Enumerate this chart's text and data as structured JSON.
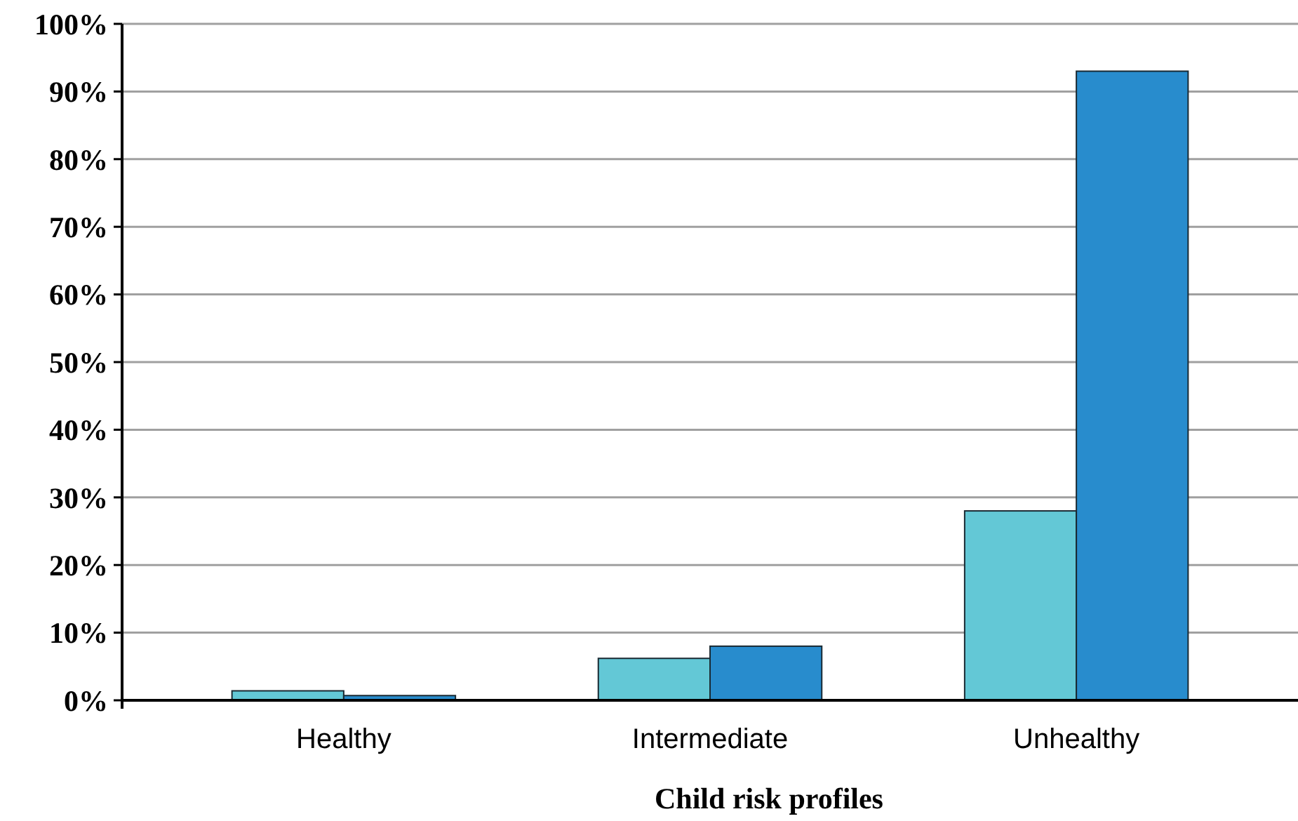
{
  "chart_data": {
    "type": "bar",
    "xlabel": "Child risk profiles",
    "categories": [
      "Healthy",
      "Intermediate",
      "Unhealthy"
    ],
    "series": [
      {
        "color": "#63c8d6",
        "values": [
          1.4,
          6.2,
          28
        ]
      },
      {
        "color": "#288ccd",
        "values": [
          0.7,
          8.0,
          93
        ]
      }
    ],
    "ylim": [
      0,
      100
    ],
    "yticks": [
      {
        "value": 0,
        "label": "0%"
      },
      {
        "value": 10,
        "label": "10%"
      },
      {
        "value": 20,
        "label": "20%"
      },
      {
        "value": 30,
        "label": "30%"
      },
      {
        "value": 40,
        "label": "40%"
      },
      {
        "value": 50,
        "label": "50%"
      },
      {
        "value": 60,
        "label": "60%"
      },
      {
        "value": 70,
        "label": "70%"
      },
      {
        "value": 80,
        "label": "80%"
      },
      {
        "value": 90,
        "label": "90%"
      },
      {
        "value": 100,
        "label": "100%"
      }
    ],
    "grid": "y"
  }
}
